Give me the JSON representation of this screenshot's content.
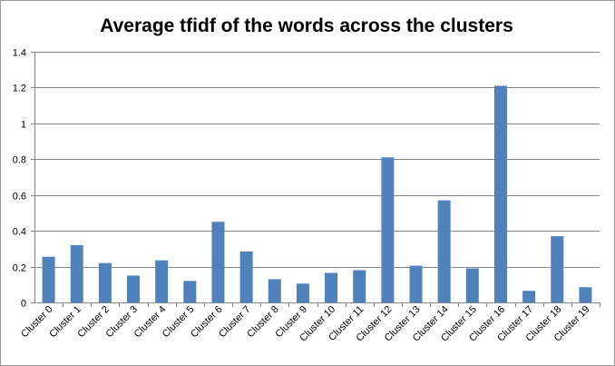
{
  "chart_data": {
    "type": "bar",
    "title": "Average tfidf of the words across the clusters",
    "xlabel": "",
    "ylabel": "",
    "ylim": [
      0,
      1.4
    ],
    "yticks": [
      "0",
      "0.2",
      "0.4",
      "0.6",
      "0.8",
      "1",
      "1.2",
      "1.4"
    ],
    "grid": true,
    "legend": "none",
    "bar_color": "#4f81bd",
    "grid_color": "#868686",
    "categories": [
      "Cluster 0",
      "Cluster 1",
      "Cluster 2",
      "Cluster 3",
      "Cluster 4",
      "Cluster 5",
      "Cluster 6",
      "Cluster 7",
      "Cluster 8",
      "Cluster 9",
      "Cluster 10",
      "Cluster 11",
      "Cluster 12",
      "Cluster 13",
      "Cluster 14",
      "Cluster 15",
      "Cluster 16",
      "Cluster 17",
      "Cluster 18",
      "Cluster 19"
    ],
    "values": [
      0.255,
      0.32,
      0.22,
      0.15,
      0.235,
      0.12,
      0.45,
      0.285,
      0.13,
      0.105,
      0.165,
      0.18,
      0.81,
      0.205,
      0.57,
      0.19,
      1.21,
      0.065,
      0.37,
      0.085
    ]
  }
}
